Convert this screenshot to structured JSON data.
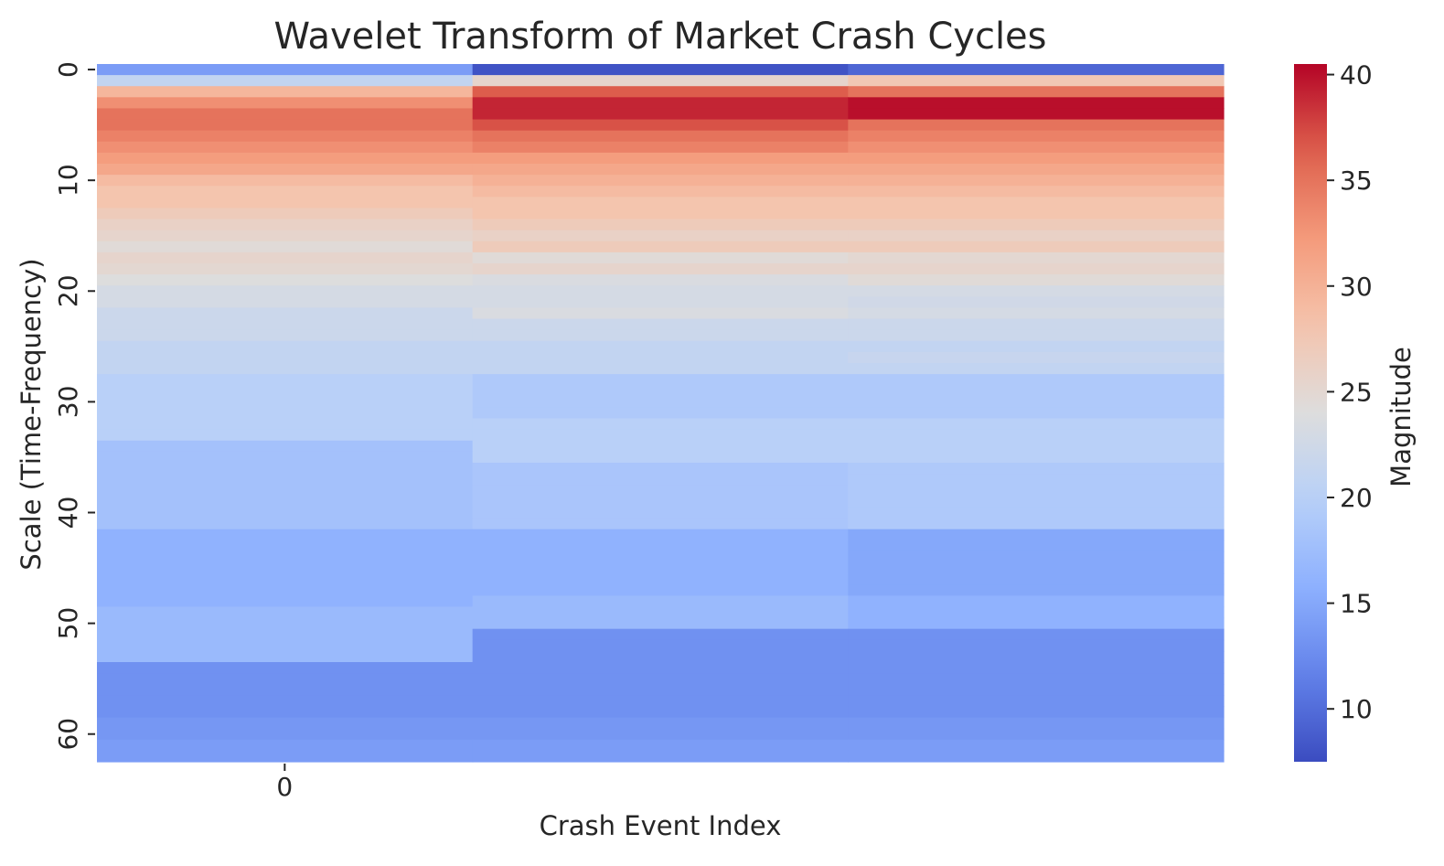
{
  "chart_data": {
    "type": "heatmap",
    "title": "Wavelet Transform of Market Crash Cycles",
    "xlabel": "Crash Event Index",
    "ylabel": "Scale (Time-Frequency)",
    "colorbar_label": "Magnitude",
    "colormap": "coolwarm",
    "vmin": 7.5,
    "vmax": 40.5,
    "colorbar_ticks": [
      10,
      15,
      20,
      25,
      30,
      35,
      40
    ],
    "x_ticks": [
      0
    ],
    "y_ticks": [
      0,
      10,
      20,
      30,
      40,
      50,
      60
    ],
    "row_count": 63,
    "column_count": 3,
    "values": [
      [
        14,
        8,
        9.5
      ],
      [
        21,
        25.5,
        27.5
      ],
      [
        29.5,
        36.5,
        35
      ],
      [
        33,
        39,
        40
      ],
      [
        35,
        39,
        40
      ],
      [
        35,
        37,
        35
      ],
      [
        34,
        35,
        34
      ],
      [
        33,
        34,
        33
      ],
      [
        32,
        32,
        32
      ],
      [
        31,
        31,
        31
      ],
      [
        29,
        30,
        30
      ],
      [
        28,
        29,
        29
      ],
      [
        28,
        28,
        28
      ],
      [
        27,
        28,
        28
      ],
      [
        26,
        27,
        27
      ],
      [
        25.5,
        26,
        26
      ],
      [
        24.5,
        27,
        27
      ],
      [
        25.5,
        24.5,
        25
      ],
      [
        25,
        25.5,
        25.5
      ],
      [
        24,
        23.5,
        24.5
      ],
      [
        23,
        23,
        23
      ],
      [
        23,
        23,
        22.5
      ],
      [
        22,
        23.5,
        23
      ],
      [
        22,
        22,
        22
      ],
      [
        22,
        22,
        22
      ],
      [
        21,
        21,
        21
      ],
      [
        21,
        21,
        21.5
      ],
      [
        21,
        21,
        21
      ],
      [
        20,
        19,
        19
      ],
      [
        20,
        19,
        19
      ],
      [
        20,
        19,
        19
      ],
      [
        20,
        19,
        19
      ],
      [
        20,
        20,
        20
      ],
      [
        20,
        20,
        20
      ],
      [
        18,
        20,
        20
      ],
      [
        18,
        20,
        20
      ],
      [
        18,
        18.5,
        19
      ],
      [
        18,
        18.5,
        19
      ],
      [
        18,
        18.5,
        19
      ],
      [
        18,
        18.5,
        19
      ],
      [
        18,
        18.5,
        19
      ],
      [
        18,
        18.5,
        19
      ],
      [
        16,
        16,
        15
      ],
      [
        16,
        16,
        15
      ],
      [
        16,
        16,
        15
      ],
      [
        16,
        16,
        15
      ],
      [
        16,
        16,
        15
      ],
      [
        16,
        16,
        15
      ],
      [
        16,
        17,
        16
      ],
      [
        17,
        17,
        16
      ],
      [
        17,
        17,
        16
      ],
      [
        17,
        13,
        13
      ],
      [
        17,
        13,
        13
      ],
      [
        17,
        13,
        13
      ],
      [
        13,
        13,
        13
      ],
      [
        13,
        13,
        13
      ],
      [
        13,
        13,
        13
      ],
      [
        13,
        13,
        13
      ],
      [
        13,
        13,
        13
      ],
      [
        13.5,
        13.5,
        13.5
      ],
      [
        13.5,
        13.5,
        13.5
      ],
      [
        14,
        14,
        14
      ],
      [
        14,
        14,
        14
      ]
    ]
  }
}
